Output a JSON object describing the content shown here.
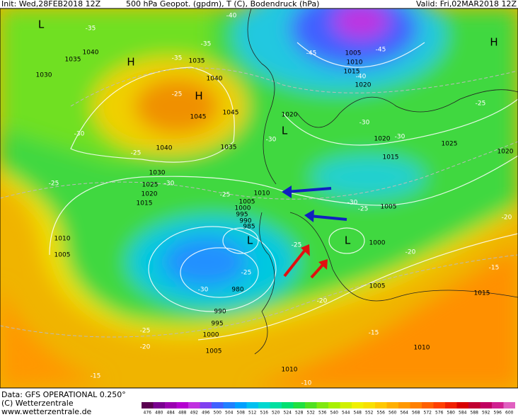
{
  "header": {
    "init": "Init: Wed,28FEB2018 12Z",
    "title": "500 hPa Geopot. (gpdm), T (C), Bodendruck (hPa)",
    "valid": "Valid: Fri,02MAR2018 12Z"
  },
  "footer": {
    "data": "Data: GFS OPERATIONAL 0.250°",
    "copyright": "(C) Wetterzentrale",
    "url": "www.wetterzentrale.de"
  },
  "map": {
    "pressure_centers": [
      "L",
      "H",
      "H",
      "H",
      "L",
      "L",
      "L"
    ],
    "isobar_labels": [
      "1040",
      "1035",
      "1030",
      "1035",
      "1040",
      "1045",
      "1045",
      "1040",
      "1035",
      "1030",
      "1025",
      "1020",
      "1015",
      "1010",
      "1005",
      "1020",
      "1005",
      "1010",
      "1015",
      "1020",
      "1020",
      "1015",
      "1025",
      "1020",
      "1010",
      "1005",
      "1000",
      "995",
      "990",
      "985",
      "1005",
      "1000",
      "1005",
      "980",
      "990",
      "995",
      "1000",
      "1005",
      "1010",
      "1010",
      "1015"
    ],
    "temperature_labels": [
      "-35",
      "-35",
      "-40",
      "-45",
      "-45",
      "-40",
      "-35",
      "-25",
      "-30",
      "-25",
      "-25",
      "-30",
      "-25",
      "-30",
      "-30",
      "-30",
      "-25",
      "-30",
      "-25",
      "-25",
      "-25",
      "-30",
      "-20",
      "-20",
      "-15",
      "-20",
      "-15",
      "-10",
      "-15",
      "-20",
      "-25"
    ]
  },
  "colorbar": {
    "values": [
      476,
      480,
      484,
      488,
      492,
      496,
      500,
      504,
      508,
      512,
      516,
      520,
      524,
      528,
      532,
      536,
      540,
      544,
      548,
      552,
      556,
      560,
      564,
      568,
      572,
      576,
      580,
      584,
      588,
      592,
      596,
      600
    ],
    "colors": [
      "#5a0050",
      "#7a0090",
      "#9a00b0",
      "#b400d0",
      "#c030e0",
      "#8040f0",
      "#4060ff",
      "#2080ff",
      "#00a0ff",
      "#00c0f0",
      "#00d8d0",
      "#00e0a0",
      "#00e070",
      "#20e040",
      "#50e020",
      "#80e810",
      "#a8f000",
      "#d0f000",
      "#f0f000",
      "#f8e000",
      "#ffc800",
      "#ffb000",
      "#ff9800",
      "#ff8000",
      "#ff6000",
      "#ff4000",
      "#f02000",
      "#d80000",
      "#c00030",
      "#c00060",
      "#d02090",
      "#e060c0"
    ]
  }
}
